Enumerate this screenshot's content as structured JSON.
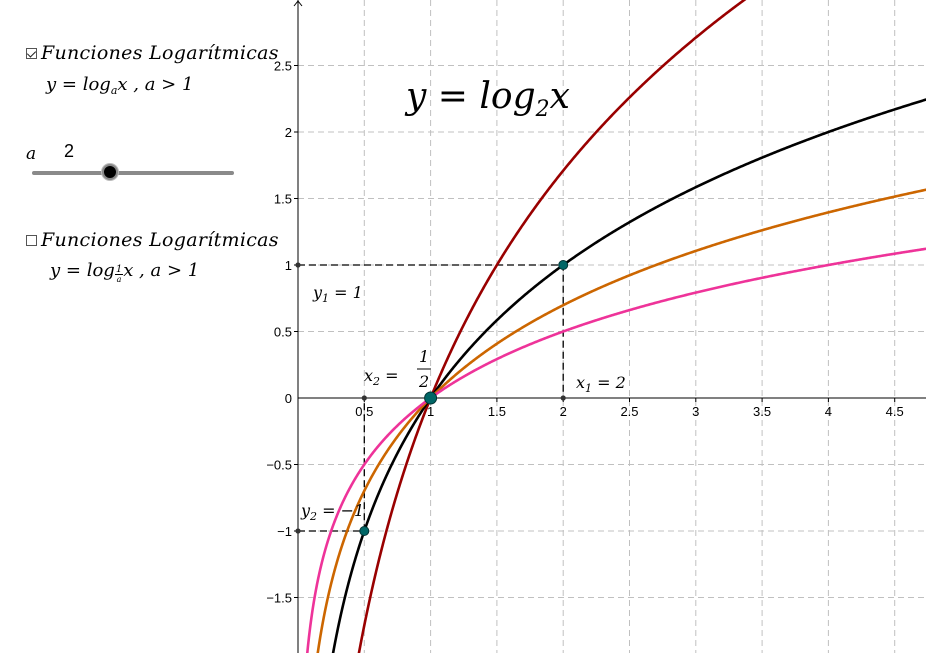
{
  "panel": {
    "checkbox1": {
      "checked": true,
      "label": "Funciones Logarítmicas"
    },
    "formula1": {
      "lhs": "y = log",
      "base": "a",
      "rhs": "x , a > 1"
    },
    "slider": {
      "name": "a",
      "value": "2",
      "min": 0.1,
      "max": 5,
      "current": 2
    },
    "checkbox2": {
      "checked": false,
      "label": "Funciones Logarítmicas"
    },
    "formula2": {
      "lhs": "y = log",
      "base_num": "1",
      "base_den": "a",
      "rhs": "x , a > 1"
    }
  },
  "graph": {
    "title": {
      "lhs": "y = log",
      "sub": "2",
      "rhs": "x"
    },
    "x_ticks": [
      "0.5",
      "1",
      "1.5",
      "2",
      "2.5",
      "3",
      "3.5",
      "4",
      "4.5"
    ],
    "y_ticks": [
      "2.5",
      "2",
      "1.5",
      "1",
      "0.5",
      "0",
      "−0.5",
      "−1",
      "−1.5"
    ],
    "xlim": [
      -0.02,
      4.7
    ],
    "ylim": [
      -1.92,
      2.98
    ],
    "annotations": {
      "y1": {
        "text": "y",
        "sub": "1",
        "rest": " = 1"
      },
      "x1": {
        "text": "x",
        "sub": "1",
        "rest": " = 2"
      },
      "x2": {
        "text": "x",
        "sub": "2",
        "rest": " = ",
        "num": "1",
        "den": "2"
      },
      "y2": {
        "text": "y",
        "sub": "2",
        "rest": " = −1"
      }
    }
  },
  "chart_data": {
    "type": "line",
    "title": "y = log2x",
    "xlim": [
      -0.02,
      4.7
    ],
    "ylim": [
      -1.92,
      2.98
    ],
    "grid": true,
    "series": [
      {
        "base": 1.5,
        "color": "#990000"
      },
      {
        "base": 2,
        "color": "#000000"
      },
      {
        "base": 2.7,
        "color": "#cc6600"
      },
      {
        "base": 4,
        "color": "#ee3399"
      }
    ],
    "points": [
      {
        "x": 1,
        "y": 0
      },
      {
        "x": 2,
        "y": 1
      },
      {
        "x": 0.5,
        "y": -1
      }
    ]
  }
}
